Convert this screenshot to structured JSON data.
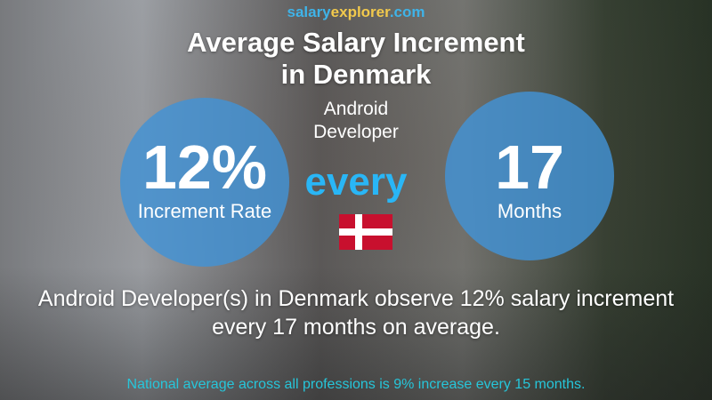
{
  "logo": {
    "part1": "salary",
    "part2": "explorer",
    "part3": ".com"
  },
  "title": {
    "line1": "Average Salary Increment",
    "line2": "in Denmark"
  },
  "job": {
    "line1": "Android",
    "line2": "Developer"
  },
  "increment": {
    "value": "12%",
    "label": "Increment Rate"
  },
  "connector": "every",
  "period": {
    "value": "17",
    "label": "Months"
  },
  "flag": {
    "country": "Denmark",
    "colors": {
      "red": "#c8102e",
      "white": "#ffffff"
    }
  },
  "summary": "Android Developer(s) in Denmark observe 12% salary increment every 17 months on average.",
  "national": "National average across all professions is 9% increase every 15 months.",
  "colors": {
    "circle": "#4292d6",
    "accent": "#29b6f6",
    "logo_blue": "#3fb3e8",
    "logo_yellow": "#f2c94c"
  }
}
